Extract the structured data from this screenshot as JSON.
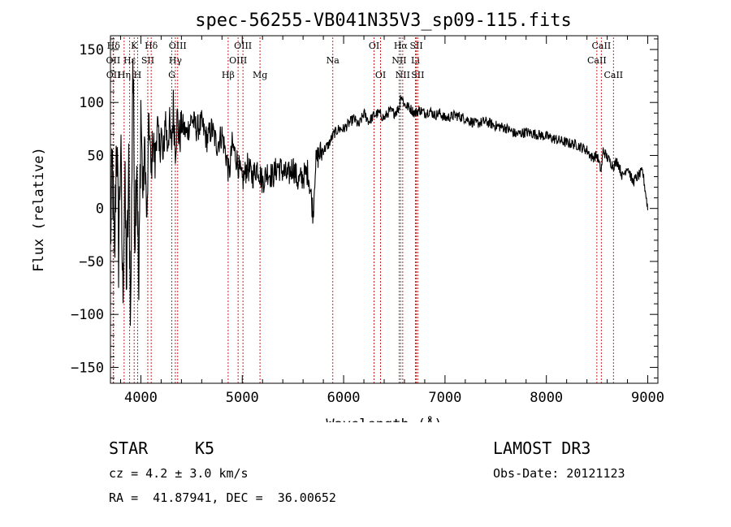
{
  "chart_data": {
    "type": "line",
    "title": "spec-56255-VB041N35V3_sp09-115.fits",
    "xlabel": "Wavelength (Å)",
    "ylabel": "Flux (relative)",
    "xlim": [
      3700,
      9100
    ],
    "ylim": [
      -165,
      163
    ],
    "xticks": [
      {
        "value": 4000,
        "label": "4000"
      },
      {
        "value": 5000,
        "label": "5000"
      },
      {
        "value": 6000,
        "label": "6000"
      },
      {
        "value": 7000,
        "label": "7000"
      },
      {
        "value": 8000,
        "label": "8000"
      },
      {
        "value": 9000,
        "label": "9000"
      }
    ],
    "yticks": [
      {
        "value": 150,
        "label": "150"
      },
      {
        "value": 100,
        "label": "100"
      },
      {
        "value": 50,
        "label": "50"
      },
      {
        "value": 0,
        "label": "0"
      },
      {
        "value": -50,
        "label": "−50"
      },
      {
        "value": -100,
        "label": "−100"
      },
      {
        "value": -150,
        "label": "−150"
      }
    ],
    "series": [
      {
        "name": "flux",
        "x": [
          3700,
          3720,
          3740,
          3760,
          3780,
          3800,
          3820,
          3840,
          3860,
          3880,
          3900,
          3920,
          3940,
          3960,
          3980,
          4000,
          4020,
          4040,
          4060,
          4080,
          4100,
          4120,
          4140,
          4160,
          4180,
          4200,
          4220,
          4240,
          4260,
          4280,
          4300,
          4320,
          4340,
          4360,
          4380,
          4400,
          4450,
          4500,
          4550,
          4600,
          4650,
          4700,
          4750,
          4800,
          4850,
          4870,
          4900,
          4950,
          5000,
          5050,
          5100,
          5150,
          5200,
          5250,
          5300,
          5350,
          5400,
          5450,
          5500,
          5550,
          5600,
          5650,
          5700,
          5720,
          5750,
          5800,
          5850,
          5900,
          5950,
          6000,
          6050,
          6100,
          6150,
          6200,
          6250,
          6300,
          6350,
          6400,
          6450,
          6500,
          6550,
          6563,
          6600,
          6650,
          6700,
          6750,
          6800,
          6850,
          6900,
          6950,
          7000,
          7100,
          7200,
          7300,
          7400,
          7500,
          7600,
          7700,
          7800,
          7900,
          8000,
          8100,
          8200,
          8300,
          8400,
          8450,
          8500,
          8540,
          8560,
          8600,
          8660,
          8700,
          8750,
          8800,
          8850,
          8900,
          8950,
          9000
        ],
        "values": [
          -30,
          40,
          -60,
          80,
          -40,
          60,
          -80,
          20,
          -70,
          30,
          -100,
          150,
          -20,
          60,
          -90,
          100,
          10,
          60,
          -20,
          90,
          30,
          70,
          40,
          85,
          50,
          75,
          40,
          90,
          60,
          80,
          55,
          95,
          60,
          85,
          65,
          80,
          70,
          85,
          75,
          80,
          65,
          75,
          60,
          70,
          45,
          30,
          60,
          45,
          25,
          40,
          30,
          40,
          25,
          35,
          30,
          40,
          35,
          30,
          40,
          25,
          30,
          35,
          -5,
          40,
          50,
          55,
          60,
          70,
          75,
          75,
          80,
          85,
          78,
          90,
          82,
          88,
          90,
          85,
          92,
          90,
          95,
          108,
          98,
          95,
          90,
          93,
          90,
          92,
          88,
          90,
          85,
          88,
          85,
          80,
          82,
          78,
          76,
          70,
          72,
          70,
          68,
          65,
          62,
          60,
          55,
          48,
          50,
          35,
          55,
          48,
          40,
          45,
          30,
          40,
          25,
          30,
          35,
          0
        ]
      }
    ],
    "line_ids": [
      {
        "label": "Hδ",
        "wave": 3730,
        "row": 1
      },
      {
        "label": "OII",
        "wave": 3727,
        "row": 2
      },
      {
        "label": "OII",
        "wave": 3729,
        "row": 3
      },
      {
        "label": "K",
        "wave": 3934,
        "row": 1
      },
      {
        "label": "Hε",
        "wave": 3889,
        "row": 2
      },
      {
        "label": "Hη",
        "wave": 3835,
        "row": 3
      },
      {
        "label": "H",
        "wave": 3968,
        "row": 3
      },
      {
        "label": "SII",
        "wave": 4068,
        "row": 2
      },
      {
        "label": "Hδ",
        "wave": 4102,
        "row": 1
      },
      {
        "label": "OIII",
        "wave": 4363,
        "row": 1
      },
      {
        "label": "Hγ",
        "wave": 4340,
        "row": 2
      },
      {
        "label": "G",
        "wave": 4305,
        "row": 3
      },
      {
        "label": "Hβ",
        "wave": 4861,
        "row": 3
      },
      {
        "label": "OIII",
        "wave": 4959,
        "row": 2
      },
      {
        "label": "OIII",
        "wave": 5007,
        "row": 1
      },
      {
        "label": "Mg",
        "wave": 5175,
        "row": 3
      },
      {
        "label": "Na",
        "wave": 5893,
        "row": 2
      },
      {
        "label": "OI",
        "wave": 6300,
        "row": 1
      },
      {
        "label": "OI",
        "wave": 6364,
        "row": 3
      },
      {
        "label": "Hα",
        "wave": 6563,
        "row": 1
      },
      {
        "label": "NII",
        "wave": 6548,
        "row": 2
      },
      {
        "label": "NII",
        "wave": 6583,
        "row": 3
      },
      {
        "label": "SII",
        "wave": 6717,
        "row": 1
      },
      {
        "label": "Li",
        "wave": 6708,
        "row": 2
      },
      {
        "label": "SII",
        "wave": 6731,
        "row": 3
      },
      {
        "label": "CaII",
        "wave": 8542,
        "row": 1
      },
      {
        "label": "CaII",
        "wave": 8498,
        "row": 2
      },
      {
        "label": "CaII",
        "wave": 8662,
        "row": 3
      }
    ]
  },
  "info": {
    "object_class": "STAR",
    "subclass": "K5",
    "survey": "LAMOST DR3",
    "cz": "cz = 4.2 ± 3.0 km/s",
    "obs_date": "Obs-Date: 20121123",
    "coords": "RA =  41.87941, DEC =  36.00652"
  },
  "colors": {
    "line_marker": "#cc2222",
    "spectrum": "#000000"
  }
}
